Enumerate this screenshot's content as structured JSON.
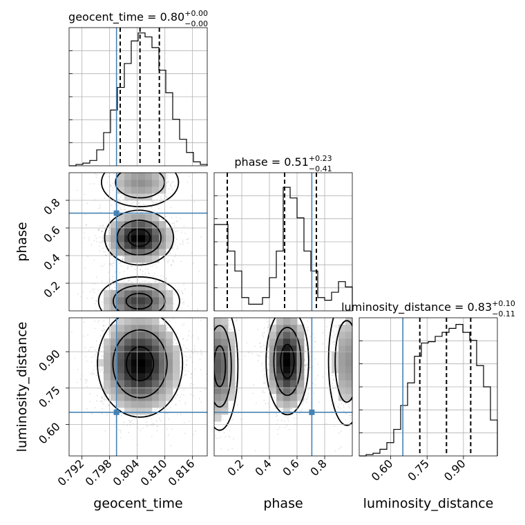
{
  "chart_data": {
    "type": "corner",
    "parameters": [
      "geocent_time",
      "phase",
      "luminosity_distance"
    ],
    "truths": {
      "geocent_time": 0.7995,
      "phase": 0.707,
      "luminosity_distance": 0.65
    },
    "ranges": {
      "geocent_time": [
        0.7892,
        0.8192
      ],
      "phase": [
        0.0,
        1.0
      ],
      "luminosity_distance": [
        0.47,
        1.04
      ]
    },
    "ticks": {
      "geocent_time": {
        "values": [
          0.792,
          0.798,
          0.804,
          0.81,
          0.816
        ],
        "labels": [
          "0.792",
          "0.798",
          "0.804",
          "0.810",
          "0.816"
        ]
      },
      "phase": {
        "values": [
          0.2,
          0.4,
          0.6,
          0.8
        ],
        "labels": [
          "0.2",
          "0.4",
          "0.6",
          "0.8"
        ]
      },
      "luminosity_distance": {
        "values": [
          0.6,
          0.75,
          0.9
        ],
        "labels": [
          "0.60",
          "0.75",
          "0.90"
        ]
      }
    },
    "diagonal": [
      {
        "param": "geocent_time",
        "title_main": "geocent_time = 0.80",
        "title_plus": "+0.00",
        "title_minus": "−0.00",
        "quantiles": [
          0.8003,
          0.8046,
          0.8088
        ],
        "hist_x": [
          0.7892,
          0.7907,
          0.7922,
          0.7937,
          0.7952,
          0.7967,
          0.7982,
          0.7997,
          0.8012,
          0.8027,
          0.8042,
          0.8057,
          0.8072,
          0.8087,
          0.8102,
          0.8117,
          0.8132,
          0.8147,
          0.8162,
          0.8177,
          0.8192
        ],
        "hist_counts": [
          0.0,
          0.01,
          0.02,
          0.04,
          0.12,
          0.25,
          0.42,
          0.59,
          0.77,
          0.94,
          1.0,
          0.97,
          0.89,
          0.72,
          0.55,
          0.35,
          0.2,
          0.1,
          0.03,
          0.01
        ]
      },
      {
        "param": "phase",
        "title_main": "phase = 0.51",
        "title_plus": "+0.23",
        "title_minus": "−0.41",
        "quantiles": [
          0.095,
          0.51,
          0.74
        ],
        "hist_x": [
          0.0,
          0.05,
          0.1,
          0.15,
          0.2,
          0.25,
          0.3,
          0.35,
          0.4,
          0.45,
          0.5,
          0.55,
          0.6,
          0.65,
          0.7,
          0.75,
          0.8,
          0.85,
          0.9,
          0.95,
          1.0
        ],
        "hist_counts": [
          0.65,
          0.65,
          0.45,
          0.3,
          0.1,
          0.05,
          0.05,
          0.1,
          0.25,
          0.45,
          0.93,
          0.85,
          0.7,
          0.45,
          0.3,
          0.1,
          0.08,
          0.14,
          0.22,
          0.18
        ]
      },
      {
        "param": "luminosity_distance",
        "title_main": "luminosity_distance = 0.83",
        "title_plus": "+0.10",
        "title_minus": "−0.11",
        "quantiles": [
          0.72,
          0.83,
          0.93
        ],
        "hist_x": [
          0.47,
          0.4985,
          0.527,
          0.5555,
          0.584,
          0.6125,
          0.641,
          0.6695,
          0.698,
          0.7265,
          0.755,
          0.7835,
          0.812,
          0.8405,
          0.869,
          0.8975,
          0.926,
          0.9545,
          0.983,
          1.0115,
          1.04
        ],
        "hist_counts": [
          0.0,
          0.01,
          0.02,
          0.05,
          0.1,
          0.2,
          0.38,
          0.55,
          0.75,
          0.85,
          0.86,
          0.9,
          0.93,
          0.96,
          0.99,
          0.93,
          0.87,
          0.68,
          0.52,
          0.27
        ]
      }
    ],
    "axis_labels": {
      "geocent_time": "geocent_time",
      "phase": "phase",
      "luminosity_distance": "luminosity_distance"
    },
    "density_panels": [
      {
        "x": "geocent_time",
        "y": "phase",
        "modes": [
          {
            "cx": 0.8044,
            "cy": 0.53,
            "sx": 0.0034,
            "sy": 0.09,
            "w": 1.0
          },
          {
            "cx": 0.8044,
            "cy": 0.07,
            "sx": 0.004,
            "sy": 0.08,
            "w": 0.7
          },
          {
            "cx": 0.8046,
            "cy": 0.93,
            "sx": 0.0038,
            "sy": 0.08,
            "w": 0.35
          }
        ]
      },
      {
        "x": "geocent_time",
        "y": "luminosity_distance",
        "modes": [
          {
            "cx": 0.8046,
            "cy": 0.85,
            "sx": 0.0042,
            "sy": 0.1,
            "w": 1.0
          }
        ]
      },
      {
        "x": "phase",
        "y": "luminosity_distance",
        "modes": [
          {
            "cx": 0.53,
            "cy": 0.86,
            "sx": 0.07,
            "sy": 0.1,
            "w": 1.0
          },
          {
            "cx": 0.04,
            "cy": 0.84,
            "sx": 0.06,
            "sy": 0.12,
            "w": 0.6
          },
          {
            "cx": 0.96,
            "cy": 0.86,
            "sx": 0.06,
            "sy": 0.12,
            "w": 0.35
          }
        ]
      }
    ],
    "colors": {
      "truth": "#4682b4",
      "ink": "#000000",
      "grid": "#b0b0b0"
    }
  }
}
